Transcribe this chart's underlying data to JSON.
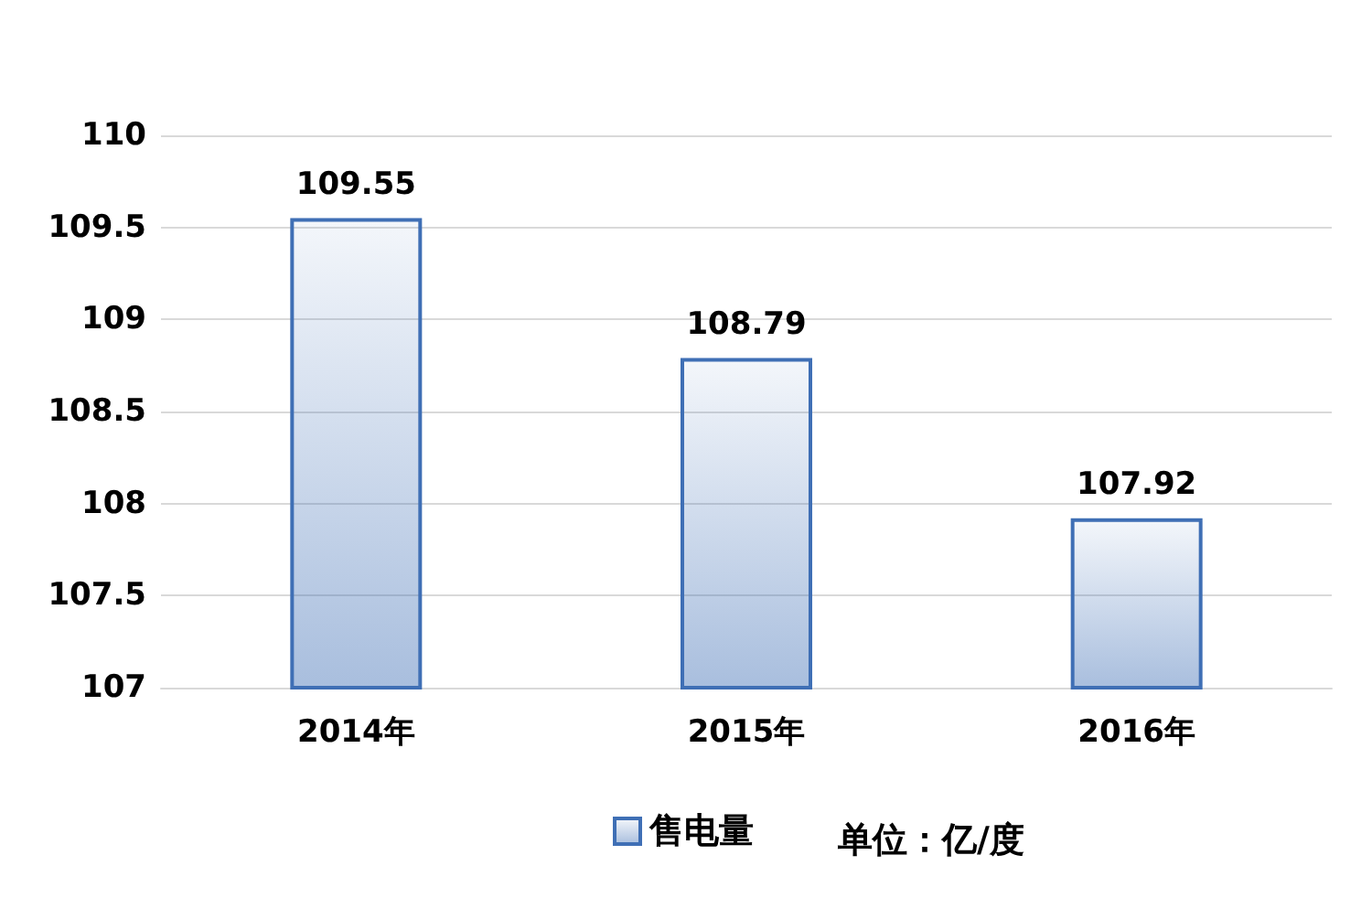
{
  "chart_data": {
    "type": "bar",
    "categories": [
      "2014年",
      "2015年",
      "2016年"
    ],
    "series": [
      {
        "name": "售电量",
        "color": "#3f6fb5",
        "values": [
          109.55,
          108.79,
          107.92
        ]
      }
    ],
    "ylim": [
      107,
      110
    ],
    "yticks": [
      107,
      107.5,
      108,
      108.5,
      109,
      109.5,
      110
    ],
    "grid": "y",
    "legend": "bottom",
    "data_labels": true,
    "annotations": [
      "单位：亿/度"
    ]
  }
}
